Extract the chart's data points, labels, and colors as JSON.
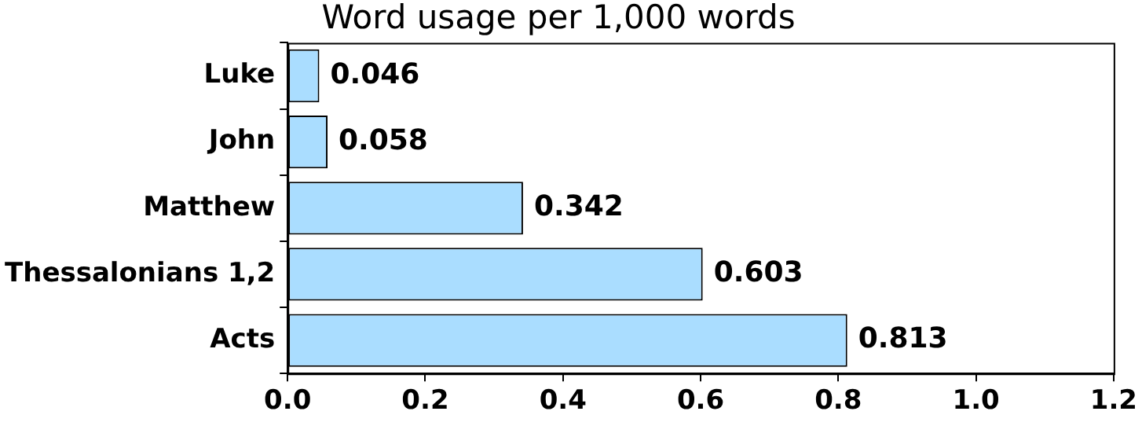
{
  "chart_data": {
    "type": "bar",
    "orientation": "horizontal",
    "title": "Word usage per 1,000 words",
    "categories": [
      "Luke",
      "John",
      "Matthew",
      "Thessalonians 1,2",
      "Acts"
    ],
    "values": [
      0.046,
      0.058,
      0.342,
      0.603,
      0.813
    ],
    "color": "#aaddff",
    "xlim": [
      0,
      1.2
    ],
    "xticks": [
      {
        "value": 0,
        "label": "0.0"
      },
      {
        "value": 0.2,
        "label": "0.2"
      },
      {
        "value": 0.4,
        "label": "0.4"
      },
      {
        "value": 0.6,
        "label": "0.6"
      },
      {
        "value": 0.8,
        "label": "0.8"
      },
      {
        "value": 1,
        "label": "1.0"
      },
      {
        "value": 1.2,
        "label": "1.2"
      }
    ],
    "data_labels": true,
    "grid": false,
    "legend": false
  }
}
